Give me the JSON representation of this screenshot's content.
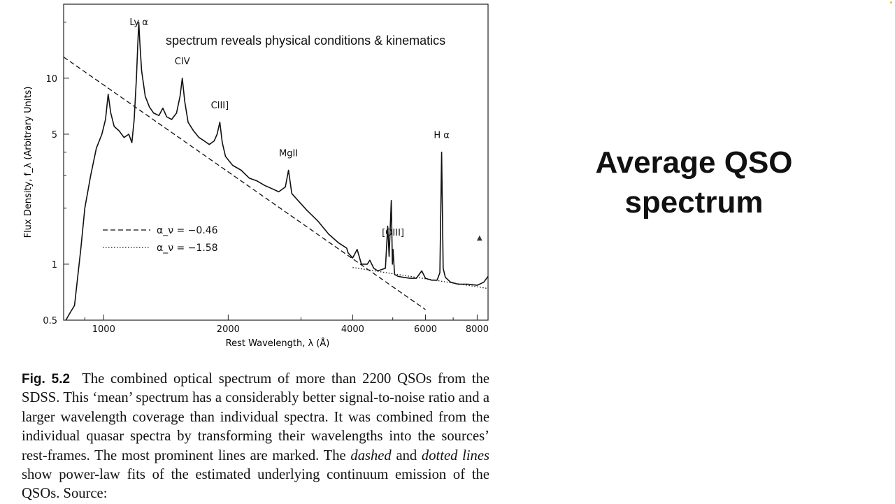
{
  "chart_data": {
    "type": "line",
    "title": "",
    "xlabel": "Rest Wavelength, λ (Å)",
    "ylabel": "Flux Density, f_λ (Arbitrary Units)",
    "x_scale": "log",
    "y_scale": "log",
    "xlim": [
      800,
      8500
    ],
    "ylim": [
      0.5,
      25
    ],
    "x_ticks": [
      1000,
      2000,
      4000,
      6000,
      8000
    ],
    "x_tick_labels": [
      "1000",
      "2000",
      "4000",
      "6000",
      "8000"
    ],
    "y_ticks": [
      0.5,
      1,
      5,
      10
    ],
    "y_tick_labels": [
      "0.5",
      "1",
      "5",
      "10"
    ],
    "grid": false,
    "series": [
      {
        "style": "solid",
        "x": [
          810,
          830,
          850,
          880,
          900,
          930,
          960,
          990,
          1010,
          1025,
          1040,
          1060,
          1090,
          1120,
          1150,
          1170,
          1185,
          1200,
          1210,
          1216,
          1222,
          1235,
          1260,
          1290,
          1320,
          1360,
          1390,
          1420,
          1460,
          1500,
          1530,
          1549,
          1570,
          1600,
          1650,
          1700,
          1750,
          1800,
          1850,
          1880,
          1909,
          1935,
          1970,
          2050,
          2150,
          2250,
          2350,
          2450,
          2550,
          2650,
          2750,
          2798,
          2850,
          2950,
          3100,
          3300,
          3500,
          3700,
          3868,
          3900,
          4000,
          4101,
          4200,
          4340,
          4400,
          4500,
          4600,
          4800,
          4861,
          4900,
          4959,
          4990,
          5007,
          5050,
          5150,
          5300,
          5500,
          5700,
          5876,
          6000,
          6200,
          6400,
          6500,
          6563,
          6620,
          6700,
          6900,
          7200,
          7600,
          8000,
          8300,
          8500
        ],
        "y": [
          0.5,
          0.55,
          0.6,
          1.2,
          2.0,
          3.0,
          4.2,
          5.0,
          6.0,
          8.2,
          6.5,
          5.5,
          5.2,
          4.8,
          5.0,
          4.5,
          6.0,
          10.0,
          16.0,
          20.0,
          16.0,
          11.0,
          8.0,
          7.0,
          6.5,
          6.3,
          6.9,
          6.2,
          6.0,
          6.5,
          8.0,
          10.0,
          7.5,
          5.8,
          5.2,
          4.8,
          4.6,
          4.4,
          4.6,
          5.0,
          5.8,
          4.5,
          3.8,
          3.4,
          3.2,
          2.9,
          2.8,
          2.65,
          2.55,
          2.45,
          2.6,
          3.2,
          2.4,
          2.2,
          1.95,
          1.7,
          1.45,
          1.3,
          1.22,
          1.15,
          1.08,
          1.2,
          1.0,
          1.0,
          1.05,
          0.95,
          0.92,
          0.95,
          1.6,
          1.1,
          2.2,
          1.0,
          1.2,
          0.88,
          0.86,
          0.85,
          0.84,
          0.84,
          0.92,
          0.84,
          0.82,
          0.82,
          0.9,
          4.0,
          0.95,
          0.85,
          0.8,
          0.78,
          0.78,
          0.77,
          0.8,
          0.86
        ]
      },
      {
        "style": "dashed",
        "x": [
          800,
          6000
        ],
        "y": [
          13.0,
          0.57
        ]
      },
      {
        "style": "dotted",
        "x": [
          4000,
          8500
        ],
        "y": [
          0.96,
          0.74
        ]
      }
    ],
    "annotations": [
      {
        "text": "Ly α",
        "x": 1216
      },
      {
        "text": "CIV",
        "x": 1549
      },
      {
        "text": "CIII]",
        "x": 1909
      },
      {
        "text": "MgII",
        "x": 2798
      },
      {
        "text": "[OIII]",
        "x": 5007
      },
      {
        "text": "H α",
        "x": 6563
      }
    ],
    "legend": {
      "placement": "middle-left",
      "entries": [
        {
          "style": "dashed",
          "label": "α_ν = −0.46"
        },
        {
          "style": "dotted",
          "label": "α_ν = −1.58"
        }
      ]
    }
  },
  "overlay": {
    "annotation": "spectrum reveals physical conditions & kinematics",
    "side_title_line1": "Average QSO",
    "side_title_line2": "spectrum"
  },
  "caption": {
    "label": "Fig. 5.2",
    "text": "The combined optical spectrum of more than 2200 QSOs from the SDSS. This ‘mean’ spectrum has a considerably better signal-to-noise ratio and a larger wavelength coverage than individual spectra. It was combined from the individual quasar spectra by transforming their wavelengths into the sources’ rest-frames. The most prominent lines are marked. The",
    "em1": "dashed",
    "and": "and",
    "em2": "dotted lines",
    "text_end": "show power-law fits of the estimated underlying continuum emission of the QSOs. Source:"
  }
}
